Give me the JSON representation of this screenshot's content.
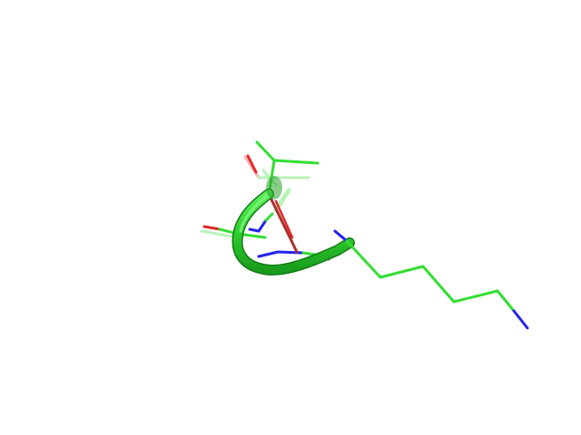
{
  "scene": {
    "background": "#ffffff",
    "palette": {
      "carbon": "#33dd33",
      "carbon_dark": "#1fae22",
      "nitrogen": "#2424ee",
      "oxygen": "#e02a2a",
      "oxygen_dark": "#a83030"
    },
    "representation": [
      "cartoon-tube",
      "sticks"
    ]
  }
}
